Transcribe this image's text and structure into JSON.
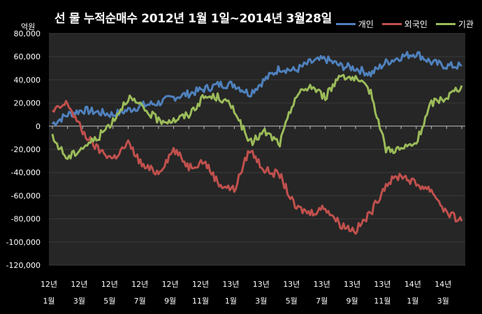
{
  "chart_data": {
    "type": "line",
    "title": "선 물 누적순매수 2012년 1월 1일~2014년 3월28일",
    "unit": "억원",
    "ylim": [
      -120000,
      80000
    ],
    "y_ticks": [
      "80,000",
      "60,000",
      "40,000",
      "20,000",
      "0",
      "-20,000",
      "-40,000",
      "-60,000",
      "-80,000",
      "-100,000",
      "-120,000"
    ],
    "y_tick_values": [
      80000,
      60000,
      40000,
      20000,
      0,
      -20000,
      -40000,
      -60000,
      -80000,
      -100000,
      -120000
    ],
    "x_ticks": [
      {
        "year": "12년",
        "month": "1월"
      },
      {
        "year": "12년",
        "month": "3월"
      },
      {
        "year": "12년",
        "month": "5월"
      },
      {
        "year": "12년",
        "month": "7월"
      },
      {
        "year": "12년",
        "month": "9월"
      },
      {
        "year": "12년",
        "month": "11월"
      },
      {
        "year": "13년",
        "month": "1월"
      },
      {
        "year": "13년",
        "month": "3월"
      },
      {
        "year": "13년",
        "month": "5월"
      },
      {
        "year": "13년",
        "month": "7월"
      },
      {
        "year": "13년",
        "month": "9월"
      },
      {
        "year": "13년",
        "month": "11월"
      },
      {
        "year": "14년",
        "month": "1월"
      },
      {
        "year": "14년",
        "month": "3월"
      }
    ],
    "x_months": [
      0,
      1,
      2,
      3,
      4,
      5,
      6,
      7,
      8,
      9,
      10,
      11,
      12,
      13,
      14,
      15,
      16,
      17,
      18,
      19,
      20,
      21,
      22,
      23,
      24,
      25,
      26,
      27
    ],
    "legend_position": "top-right",
    "grid": true,
    "series": [
      {
        "name": "개인",
        "color": "#4f81bd",
        "values": [
          2000,
          10000,
          14000,
          12000,
          10000,
          14000,
          18000,
          20000,
          25000,
          28000,
          32000,
          36000,
          36000,
          28000,
          40000,
          50000,
          48000,
          55000,
          58000,
          52000,
          50000,
          45000,
          55000,
          60000,
          63000,
          55000,
          52000,
          52000
        ]
      },
      {
        "name": "외국인",
        "color": "#c0504d",
        "values": [
          12000,
          20000,
          -5000,
          -20000,
          -28000,
          -15000,
          -35000,
          -40000,
          -20000,
          -35000,
          -30000,
          -50000,
          -55000,
          -20000,
          -38000,
          -42000,
          -70000,
          -75000,
          -70000,
          -85000,
          -90000,
          -75000,
          -50000,
          -42000,
          -50000,
          -55000,
          -75000,
          -82000
        ]
      },
      {
        "name": "기관",
        "color": "#9bbb59",
        "values": [
          -10000,
          -28000,
          -18000,
          -10000,
          5000,
          25000,
          15000,
          5000,
          5000,
          10000,
          25000,
          25000,
          15000,
          -15000,
          -5000,
          -15000,
          25000,
          35000,
          25000,
          45000,
          40000,
          30000,
          -20000,
          -20000,
          -15000,
          20000,
          25000,
          35000
        ]
      }
    ]
  }
}
